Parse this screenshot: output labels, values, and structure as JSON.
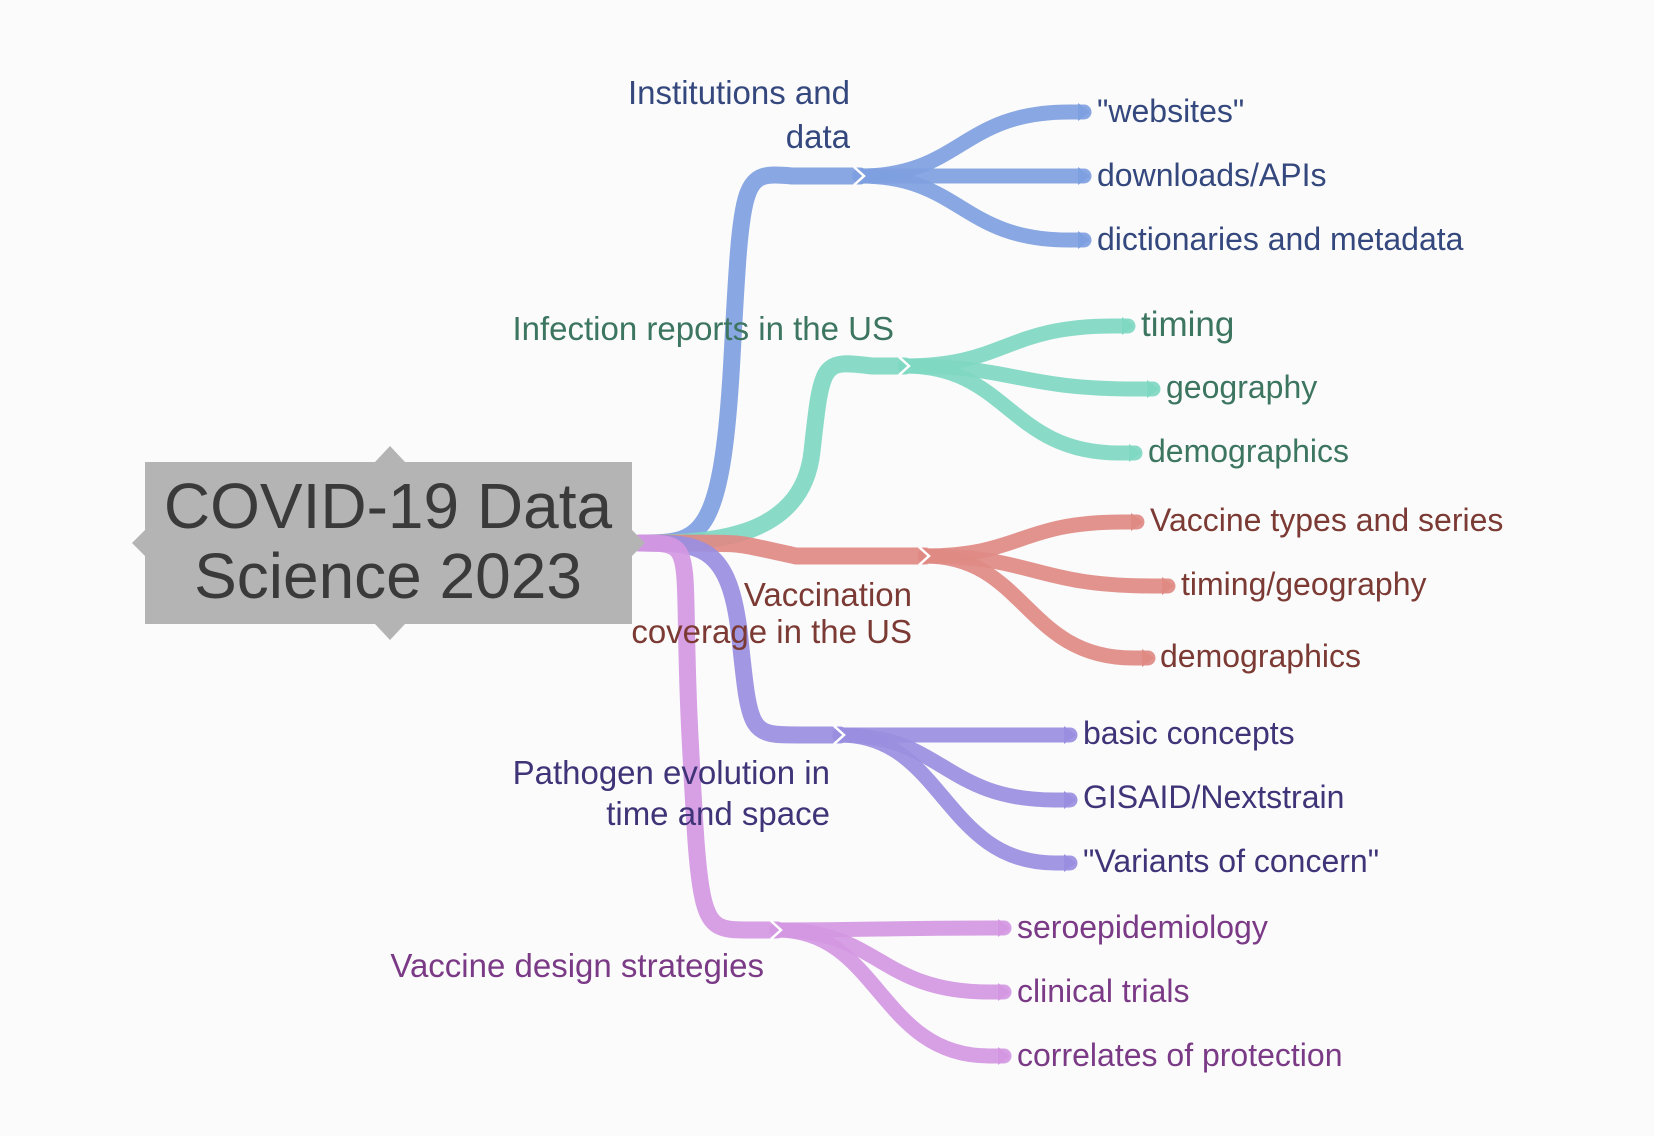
{
  "root": {
    "title_line1": "COVID-19 Data",
    "title_line2": "Science 2023"
  },
  "branches": [
    {
      "label_line1": "Institutions and",
      "label_line2": "data",
      "color": "#7fa0e0",
      "text_color": "#34487e",
      "leaves": [
        "\"websites\"",
        "downloads/APIs",
        "dictionaries and metadata"
      ]
    },
    {
      "label_line1": "Infection reports in the US",
      "label_line2": "",
      "color": "#7fd8c2",
      "text_color": "#3c7560",
      "leaves": [
        "timing",
        "geography",
        "demographics"
      ]
    },
    {
      "label_line1": "Vaccination",
      "label_line2": "coverage in the US",
      "color": "#e08a84",
      "text_color": "#7b3a34",
      "leaves": [
        "Vaccine types and series",
        "timing/geography",
        "demographics"
      ]
    },
    {
      "label_line1": "Pathogen evolution in",
      "label_line2": "time and space",
      "color": "#9a8ee0",
      "text_color": "#3f3478",
      "leaves": [
        "basic concepts",
        "GISAID/Nextstrain",
        "\"Variants of concern\""
      ]
    },
    {
      "label_line1": "Vaccine design strategies",
      "label_line2": "",
      "color": "#d497e2",
      "text_color": "#7a3a86",
      "leaves": [
        "seroepidemiology",
        "clinical trials",
        "correlates of protection"
      ]
    }
  ]
}
